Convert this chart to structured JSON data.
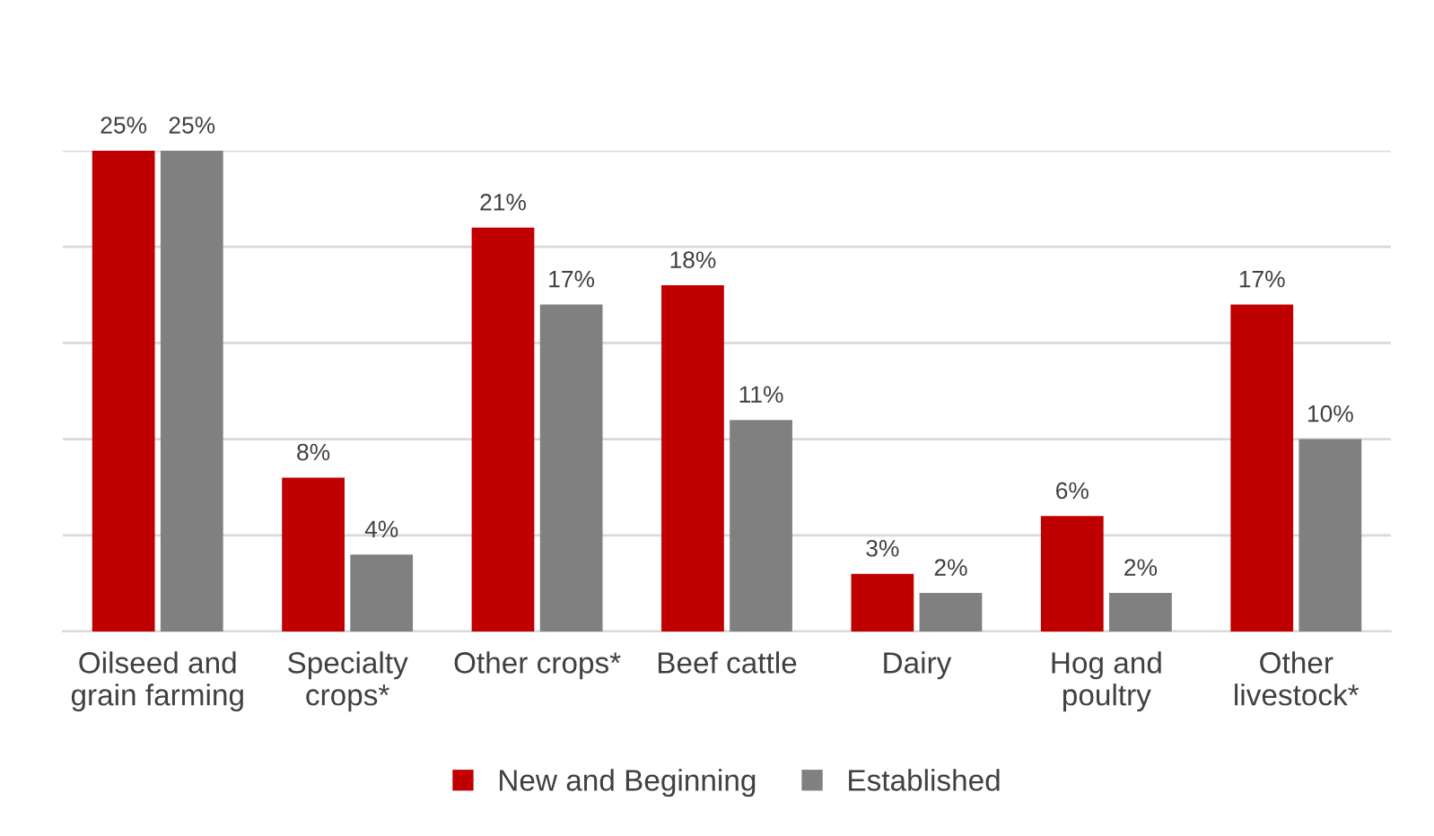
{
  "chart_data": {
    "type": "bar",
    "categories": [
      "Oilseed and\ngrain farming",
      "Specialty\ncrops*",
      "Other crops*",
      "Beef cattle",
      "Dairy",
      "Hog and\npoultry",
      "Other\nlivestock*"
    ],
    "series": [
      {
        "name": "New and Beginning",
        "color": "#c00000",
        "values": [
          25,
          8,
          21,
          18,
          3,
          6,
          17
        ],
        "value_labels": [
          "25%",
          "8%",
          "21%",
          "18%",
          "3%",
          "6%",
          "17%"
        ]
      },
      {
        "name": "Established",
        "color": "#808080",
        "values": [
          25,
          4,
          17,
          11,
          2,
          2,
          10
        ],
        "value_labels": [
          "25%",
          "4%",
          "17%",
          "11%",
          "2%",
          "2%",
          "10%"
        ]
      }
    ],
    "ylim": [
      0,
      25
    ],
    "yticks": [
      {
        "value": 0,
        "label": null
      },
      {
        "value": 5,
        "label": null
      },
      {
        "value": 10,
        "label": null
      },
      {
        "value": 15,
        "label": null
      },
      {
        "value": 20,
        "label": null
      },
      {
        "value": 25,
        "label": null
      }
    ],
    "grid": "y",
    "legend": "bottom",
    "tick_labels": "x"
  }
}
